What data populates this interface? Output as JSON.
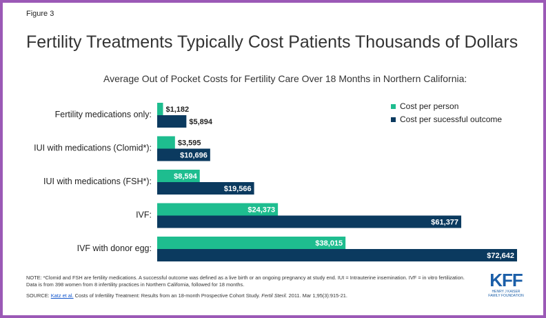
{
  "figure_label": "Figure 3",
  "chart_data": {
    "type": "bar",
    "orientation": "horizontal",
    "title": "Fertility Treatments Typically Cost Patients Thousands of Dollars",
    "subtitle": "Average Out of Pocket Costs for Fertility Care Over 18 Months in Northern California:",
    "categories": [
      "Fertility medications only:",
      "IUI with medications (Clomid*):",
      "IUI with medications (FSH*):",
      "IVF:",
      "IVF with donor egg:"
    ],
    "series": [
      {
        "name": "Cost per person",
        "color": "#1ebd8f",
        "values": [
          1182,
          3595,
          8594,
          24373,
          38015
        ],
        "labels": [
          "$1,182",
          "$3,595",
          "$8,594",
          "$24,373",
          "$38,015"
        ]
      },
      {
        "name": "Cost per sucessful outcome",
        "color": "#0b3a5f",
        "values": [
          5894,
          10696,
          19566,
          61377,
          72642
        ],
        "labels": [
          "$5,894",
          "$10,696",
          "$19,566",
          "$61,377",
          "$72,642"
        ]
      }
    ],
    "xlim": [
      0,
      72642
    ],
    "grid": false,
    "legend_position": "top-right"
  },
  "note": "NOTE: *Clomid and FSH are fertility medications. A successful outcome was defined as a live birth or an ongoing pregnancy at study end. IUI = Intrauterine insemination. IVF = in vitro fertilization. Data is from 398 women from 8 infertility practices in Northern California, followed for 18 months.",
  "source": {
    "prefix": "SOURCE: ",
    "link": "Katz et al.",
    "middle": " Costs of Infertility Treatment: Results from an 18-month Prospective Cohort Study. ",
    "journal": "Fertil Steril.",
    "suffix": " 2011. Mar 1;95(3):915-21."
  },
  "logo": {
    "text": "KFF",
    "subtitle": "HENRY J KAISER\nFAMILY FOUNDATION"
  }
}
